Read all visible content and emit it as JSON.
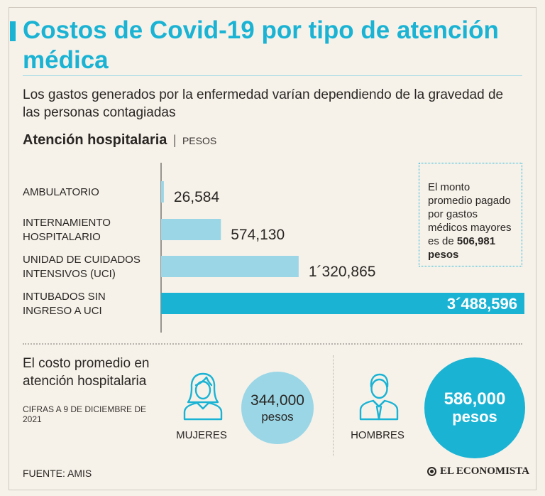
{
  "title": "Costos de Covid-19 por tipo de atención médica",
  "subtitle": "Los gastos generados por la enfermedad varían dependiendo de la gravedad de las personas contagiadas",
  "section": {
    "title": "Atención hospitalaria",
    "separator": "|",
    "unit": "PESOS"
  },
  "chart_data": {
    "type": "bar",
    "orientation": "horizontal",
    "title": "Atención hospitalaria",
    "unit": "PESOS",
    "categories": [
      [
        "AMBULATORIO"
      ],
      [
        "INTERNAMIENTO",
        "HOSPITALARIO"
      ],
      [
        "UNIDAD DE CUIDADOS",
        "INTENSIVOS (UCI)"
      ],
      [
        "INTUBADOS SIN",
        "INGRESO A UCI"
      ]
    ],
    "values": [
      26584,
      574130,
      1320865,
      3488596
    ],
    "value_labels": [
      "26,584",
      "574,130",
      "1´320,865",
      "3´488,596"
    ],
    "xlim": [
      0,
      3488596
    ],
    "grid": false
  },
  "callout": {
    "text": "El monto promedio pagado por gastos médicos mayores es de",
    "amount": "506,981 pesos"
  },
  "average": {
    "label": "El costo promedio en atención hospitalaria",
    "date_note": "CIFRAS A 9 DE DICIEMBRE DE 2021",
    "women": {
      "label": "MUJERES",
      "amount": "344,000",
      "unit": "pesos"
    },
    "men": {
      "label": "HOMBRES",
      "amount": "586,000",
      "unit": "pesos"
    }
  },
  "source": "FUENTE: AMIS",
  "brand": "EL ECONOMISTA",
  "colors": {
    "accent": "#1ab3d4",
    "light_bar": "#9ad6e6",
    "text": "#2a2623",
    "background": "#f6f2ea"
  }
}
